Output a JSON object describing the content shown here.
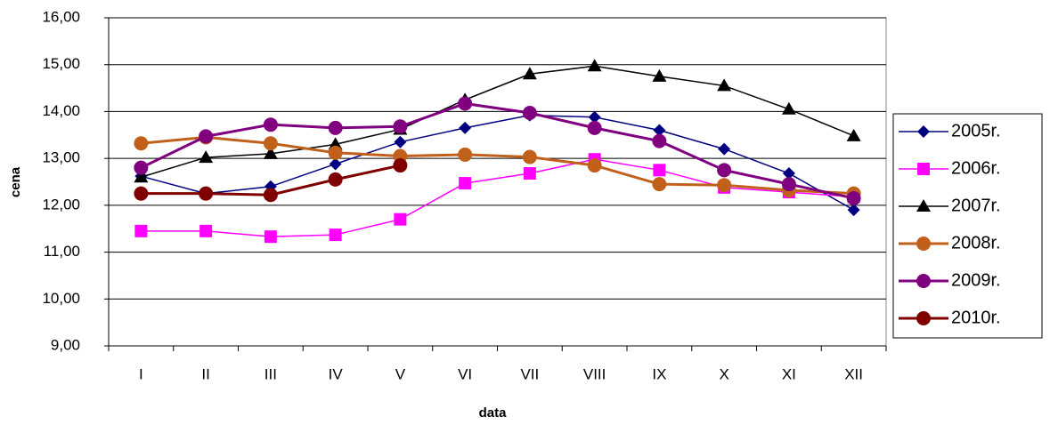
{
  "chart_data": {
    "type": "line",
    "x_label": "data",
    "y_label": "cena",
    "categories": [
      "I",
      "II",
      "III",
      "IV",
      "V",
      "VI",
      "VII",
      "VIII",
      "IX",
      "X",
      "XI",
      "XII"
    ],
    "ylim": [
      9,
      16
    ],
    "yticks": [
      {
        "value": 9,
        "label": "9,00"
      },
      {
        "value": 10,
        "label": "10,00"
      },
      {
        "value": 11,
        "label": "11,00"
      },
      {
        "value": 12,
        "label": "12,00"
      },
      {
        "value": 13,
        "label": "13,00"
      },
      {
        "value": 14,
        "label": "14,00"
      },
      {
        "value": 15,
        "label": "15,00"
      },
      {
        "value": 16,
        "label": "16,00"
      }
    ],
    "grid": true,
    "legend": "right",
    "series": [
      {
        "name": "2005r.",
        "color": "#000080",
        "marker": "diamond",
        "line_width": 1.5,
        "values": [
          12.62,
          12.25,
          12.4,
          12.88,
          13.35,
          13.65,
          13.92,
          13.88,
          13.6,
          13.2,
          12.68,
          11.9
        ]
      },
      {
        "name": "2006r.",
        "color": "#ff00ff",
        "marker": "square",
        "line_width": 1.5,
        "values": [
          11.45,
          11.45,
          11.33,
          11.37,
          11.7,
          12.47,
          12.68,
          12.98,
          12.75,
          12.38,
          12.28,
          12.18
        ]
      },
      {
        "name": "2007r.",
        "color": "#000000",
        "marker": "triangle",
        "line_width": 1.5,
        "values": [
          12.6,
          13.02,
          13.1,
          13.3,
          13.62,
          14.25,
          14.8,
          14.97,
          14.75,
          14.55,
          14.05,
          13.48
        ]
      },
      {
        "name": "2008r.",
        "color": "#c0601a",
        "marker": "circle",
        "line_width": 3,
        "values": [
          13.32,
          13.45,
          13.32,
          13.12,
          13.05,
          13.08,
          13.03,
          12.85,
          12.45,
          12.43,
          12.32,
          12.25
        ]
      },
      {
        "name": "2009r.",
        "color": "#800080",
        "marker": "circle",
        "line_width": 3,
        "values": [
          12.8,
          13.47,
          13.72,
          13.65,
          13.68,
          14.17,
          13.97,
          13.65,
          13.37,
          12.75,
          12.45,
          12.15
        ]
      },
      {
        "name": "2010r.",
        "color": "#800000",
        "marker": "circle",
        "line_width": 3,
        "values": [
          12.25,
          12.25,
          12.22,
          12.55,
          12.85,
          null,
          null,
          null,
          null,
          null,
          null,
          null
        ]
      }
    ]
  }
}
